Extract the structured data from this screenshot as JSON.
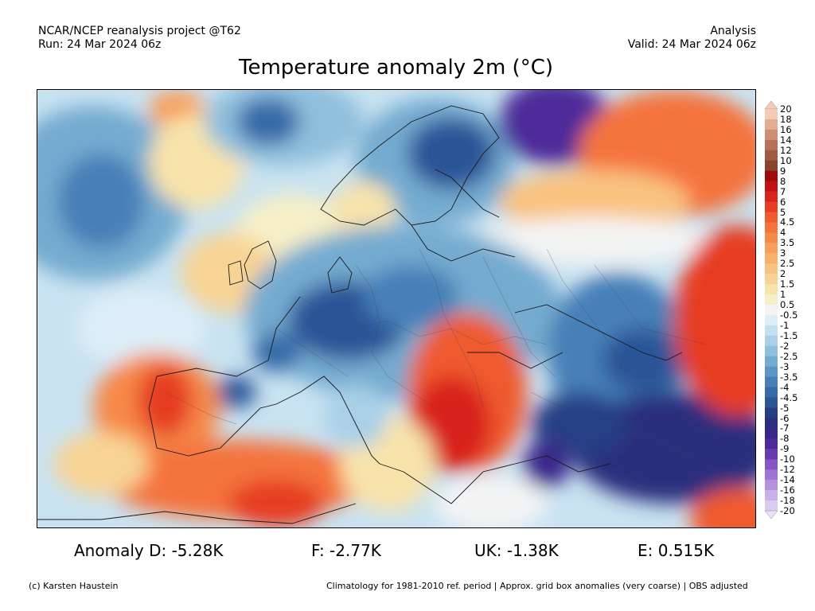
{
  "header": {
    "project": "NCAR/NCEP reanalysis project @T62",
    "run": "Run: 24 Mar 2024 06z",
    "type": "Analysis",
    "valid": "Valid: 24 Mar 2024 06z"
  },
  "title": "Temperature anomaly 2m (°C)",
  "legend": {
    "levels": [
      "20",
      "18",
      "16",
      "14",
      "12",
      "10",
      "9",
      "8",
      "7",
      "6",
      "5",
      "4.5",
      "4",
      "3.5",
      "3",
      "2.5",
      "2",
      "1.5",
      "1",
      "0.5",
      "-0.5",
      "-1",
      "-1.5",
      "-2",
      "-2.5",
      "-3",
      "-3.5",
      "-4",
      "-4.5",
      "-5",
      "-6",
      "-7",
      "-8",
      "-9",
      "-10",
      "-12",
      "-14",
      "-16",
      "-18",
      "-20"
    ],
    "colors": [
      "#f4cbb4",
      "#e3ad92",
      "#cd8e72",
      "#b77257",
      "#a05a41",
      "#8a442e",
      "#9e0b0b",
      "#c01214",
      "#d8241c",
      "#e63d24",
      "#ef5a2e",
      "#f4733c",
      "#f6894a",
      "#f89e5b",
      "#f9b06d",
      "#f9c280",
      "#f8d494",
      "#f8e3aa",
      "#f6efc7",
      "#f4f4f4",
      "#ddeef8",
      "#c3e0f0",
      "#a9d0e7",
      "#8fbfdc",
      "#74abd0",
      "#5b95c3",
      "#4680b7",
      "#366aa8",
      "#2b5597",
      "#253f86",
      "#2b2f7d",
      "#3a2689",
      "#4e2a99",
      "#6a3bb0",
      "#8656c4",
      "#9e74d4",
      "#b592df",
      "#cab0e9",
      "#dccbf0",
      "#ece0f7"
    ]
  },
  "stats": {
    "d": "Anomaly D: -5.28K",
    "f": "F: -2.77K",
    "uk": "UK: -1.38K",
    "e": "E: 0.515K"
  },
  "footer": {
    "credit": "(c) Karsten Haustein",
    "note": "Climatology for 1981-2010 ref. period | Approx. grid box anomalies (very coarse) | OBS adjusted"
  }
}
